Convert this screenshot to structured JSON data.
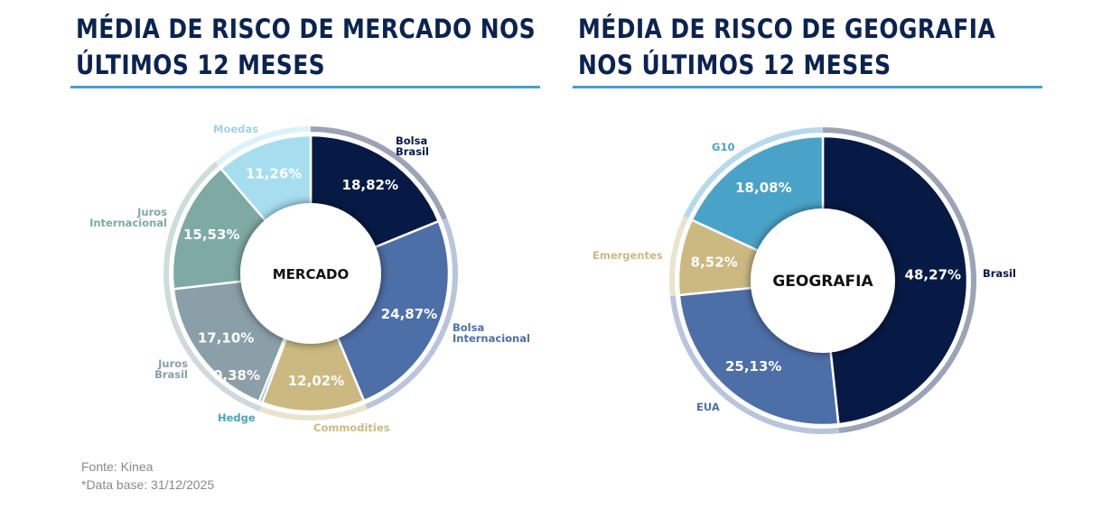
{
  "titles": {
    "left_line1": "MÉDIA DE RISCO DE MERCADO NOS",
    "left_line2": "ÚLTIMOS 12 MESES",
    "right_line1": "MÉDIA DE RISCO DE GEOGRAFIA",
    "right_line2": "NOS ÚLTIMOS 12 MESES"
  },
  "footer": {
    "source": "Fonte: Kinea",
    "date": "*Data base: 31/12/2025"
  },
  "chart_data": [
    {
      "type": "pie",
      "center_label": "MERCADO",
      "categories": [
        "Bolsa Brasil",
        "Bolsa Internacional",
        "Commodities",
        "Hedge",
        "Juros Brasil",
        "Juros Internacional",
        "Moedas"
      ],
      "values": [
        18.82,
        24.87,
        12.02,
        0.38,
        17.1,
        15.53,
        11.26
      ],
      "value_labels": [
        "18,82%",
        "24,87%",
        "12,02%",
        "0,38%",
        "17,10%",
        "15,53%",
        "11,26%"
      ],
      "colors": [
        "#061a45",
        "#4d6fa8",
        "#cbb981",
        "#4aa3c8",
        "#8a9fa8",
        "#7faaa3",
        "#a6def0"
      ],
      "unit": "%"
    },
    {
      "type": "pie",
      "center_label": "GEOGRAFIA",
      "categories": [
        "Brasil",
        "EUA",
        "Emergentes",
        "G10"
      ],
      "values": [
        48.27,
        25.13,
        8.52,
        18.08
      ],
      "value_labels": [
        "48,27%",
        "25,13%",
        "8,52%",
        "18,08%"
      ],
      "colors": [
        "#061a45",
        "#4d6fa8",
        "#cbb981",
        "#49a3c8"
      ],
      "unit": "%"
    }
  ]
}
